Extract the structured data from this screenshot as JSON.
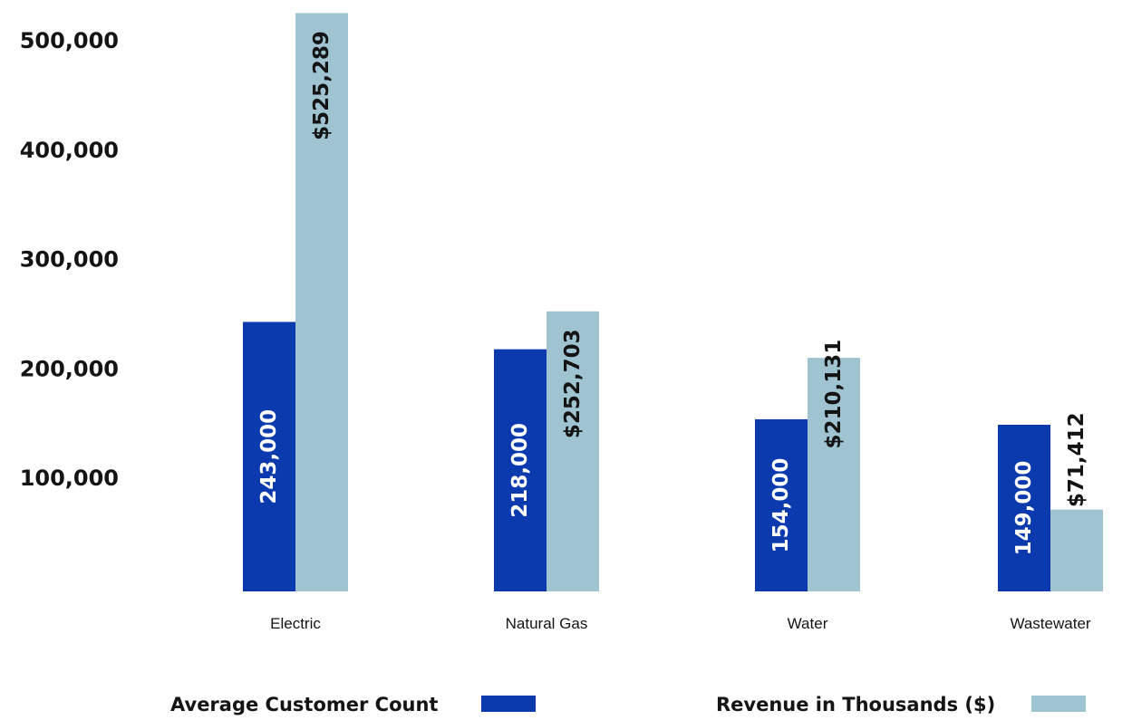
{
  "chart_data": {
    "type": "bar",
    "categories": [
      "Electric",
      "Natural Gas",
      "Water",
      "Wastewater"
    ],
    "series": [
      {
        "name": "Average Customer Count",
        "values": [
          243000,
          218000,
          154000,
          149000
        ],
        "labels": [
          "243,000",
          "218,000",
          "154,000",
          "149,000"
        ],
        "color": "#0a3aad",
        "label_color": "#ffffff"
      },
      {
        "name": "Revenue in Thousands ($)",
        "values": [
          525289,
          252703,
          210131,
          71412
        ],
        "labels": [
          "$525,289",
          "$252,703",
          "$210,131",
          "$71,412"
        ],
        "color": "#9fc3d1",
        "label_color": "#141414"
      }
    ],
    "y_ticks": [
      100000,
      200000,
      300000,
      400000,
      500000
    ],
    "y_tick_labels": [
      "100,000",
      "200,000",
      "300,000",
      "400,000",
      "500,000"
    ],
    "ylim": [
      40000,
      560000
    ],
    "grid": false,
    "legend_position": "bottom",
    "title": "",
    "xlabel": "",
    "ylabel": ""
  },
  "legend": {
    "customer_label": "Average Customer Count",
    "revenue_label": "Revenue in Thousands ($)"
  }
}
